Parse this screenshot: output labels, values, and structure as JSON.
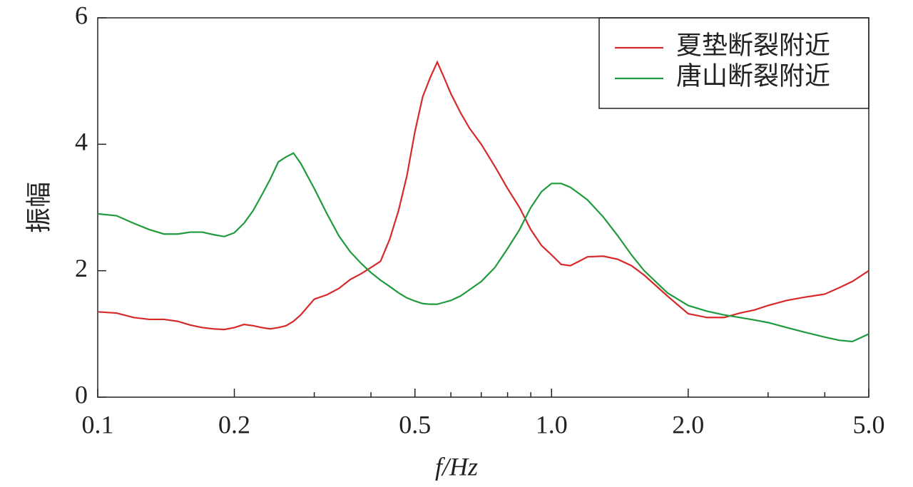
{
  "chart_data": {
    "type": "line",
    "xlabel": "f/Hz",
    "ylabel": "振幅",
    "x": [
      0.1,
      0.11,
      0.12,
      0.13,
      0.14,
      0.15,
      0.16,
      0.17,
      0.18,
      0.19,
      0.2,
      0.21,
      0.22,
      0.23,
      0.24,
      0.25,
      0.26,
      0.27,
      0.28,
      0.3,
      0.32,
      0.34,
      0.36,
      0.38,
      0.4,
      0.42,
      0.44,
      0.46,
      0.48,
      0.5,
      0.52,
      0.54,
      0.56,
      0.58,
      0.6,
      0.63,
      0.66,
      0.7,
      0.75,
      0.8,
      0.85,
      0.9,
      0.95,
      1.0,
      1.05,
      1.1,
      1.15,
      1.2,
      1.3,
      1.4,
      1.5,
      1.6,
      1.8,
      2.0,
      2.2,
      2.4,
      2.6,
      2.8,
      3.0,
      3.3,
      3.6,
      4.0,
      4.3,
      4.6,
      5.0
    ],
    "series": [
      {
        "name": "夏垫断裂附近",
        "color": "#d62a2a",
        "values": [
          1.35,
          1.33,
          1.26,
          1.23,
          1.23,
          1.2,
          1.14,
          1.1,
          1.08,
          1.07,
          1.1,
          1.15,
          1.13,
          1.1,
          1.08,
          1.1,
          1.13,
          1.2,
          1.3,
          1.55,
          1.62,
          1.72,
          1.86,
          1.95,
          2.05,
          2.15,
          2.5,
          2.95,
          3.5,
          4.2,
          4.75,
          5.05,
          5.3,
          5.05,
          4.8,
          4.5,
          4.25,
          4.0,
          3.65,
          3.3,
          3.0,
          2.65,
          2.4,
          2.25,
          2.1,
          2.08,
          2.15,
          2.22,
          2.23,
          2.18,
          2.08,
          1.93,
          1.6,
          1.32,
          1.26,
          1.26,
          1.33,
          1.38,
          1.45,
          1.53,
          1.58,
          1.63,
          1.73,
          1.83,
          2.0
        ]
      },
      {
        "name": "唐山断裂附近",
        "color": "#1f9a3c",
        "values": [
          2.9,
          2.87,
          2.75,
          2.65,
          2.58,
          2.58,
          2.61,
          2.61,
          2.57,
          2.54,
          2.6,
          2.75,
          2.95,
          3.2,
          3.45,
          3.72,
          3.8,
          3.86,
          3.7,
          3.3,
          2.9,
          2.55,
          2.3,
          2.12,
          1.97,
          1.85,
          1.75,
          1.65,
          1.57,
          1.52,
          1.48,
          1.47,
          1.47,
          1.5,
          1.53,
          1.6,
          1.7,
          1.83,
          2.05,
          2.35,
          2.65,
          3.0,
          3.25,
          3.38,
          3.38,
          3.32,
          3.22,
          3.12,
          2.85,
          2.55,
          2.25,
          2.0,
          1.65,
          1.45,
          1.36,
          1.3,
          1.26,
          1.22,
          1.18,
          1.1,
          1.03,
          0.95,
          0.9,
          0.88,
          1.0
        ]
      }
    ],
    "xscale": "log",
    "xlim": [
      0.1,
      5.0
    ],
    "xticks": [
      0.1,
      0.2,
      0.5,
      {
        "value": 1,
        "label": "1.0"
      },
      {
        "value": 2,
        "label": "2.0"
      },
      {
        "value": 5,
        "label": "5.0"
      }
    ],
    "xminorticks": [
      0.3,
      0.4,
      0.6,
      0.7,
      0.8,
      0.9,
      3,
      4
    ],
    "ylim": [
      0,
      6
    ],
    "yticks": [
      0,
      2,
      4,
      6
    ],
    "legend": "upper right"
  }
}
